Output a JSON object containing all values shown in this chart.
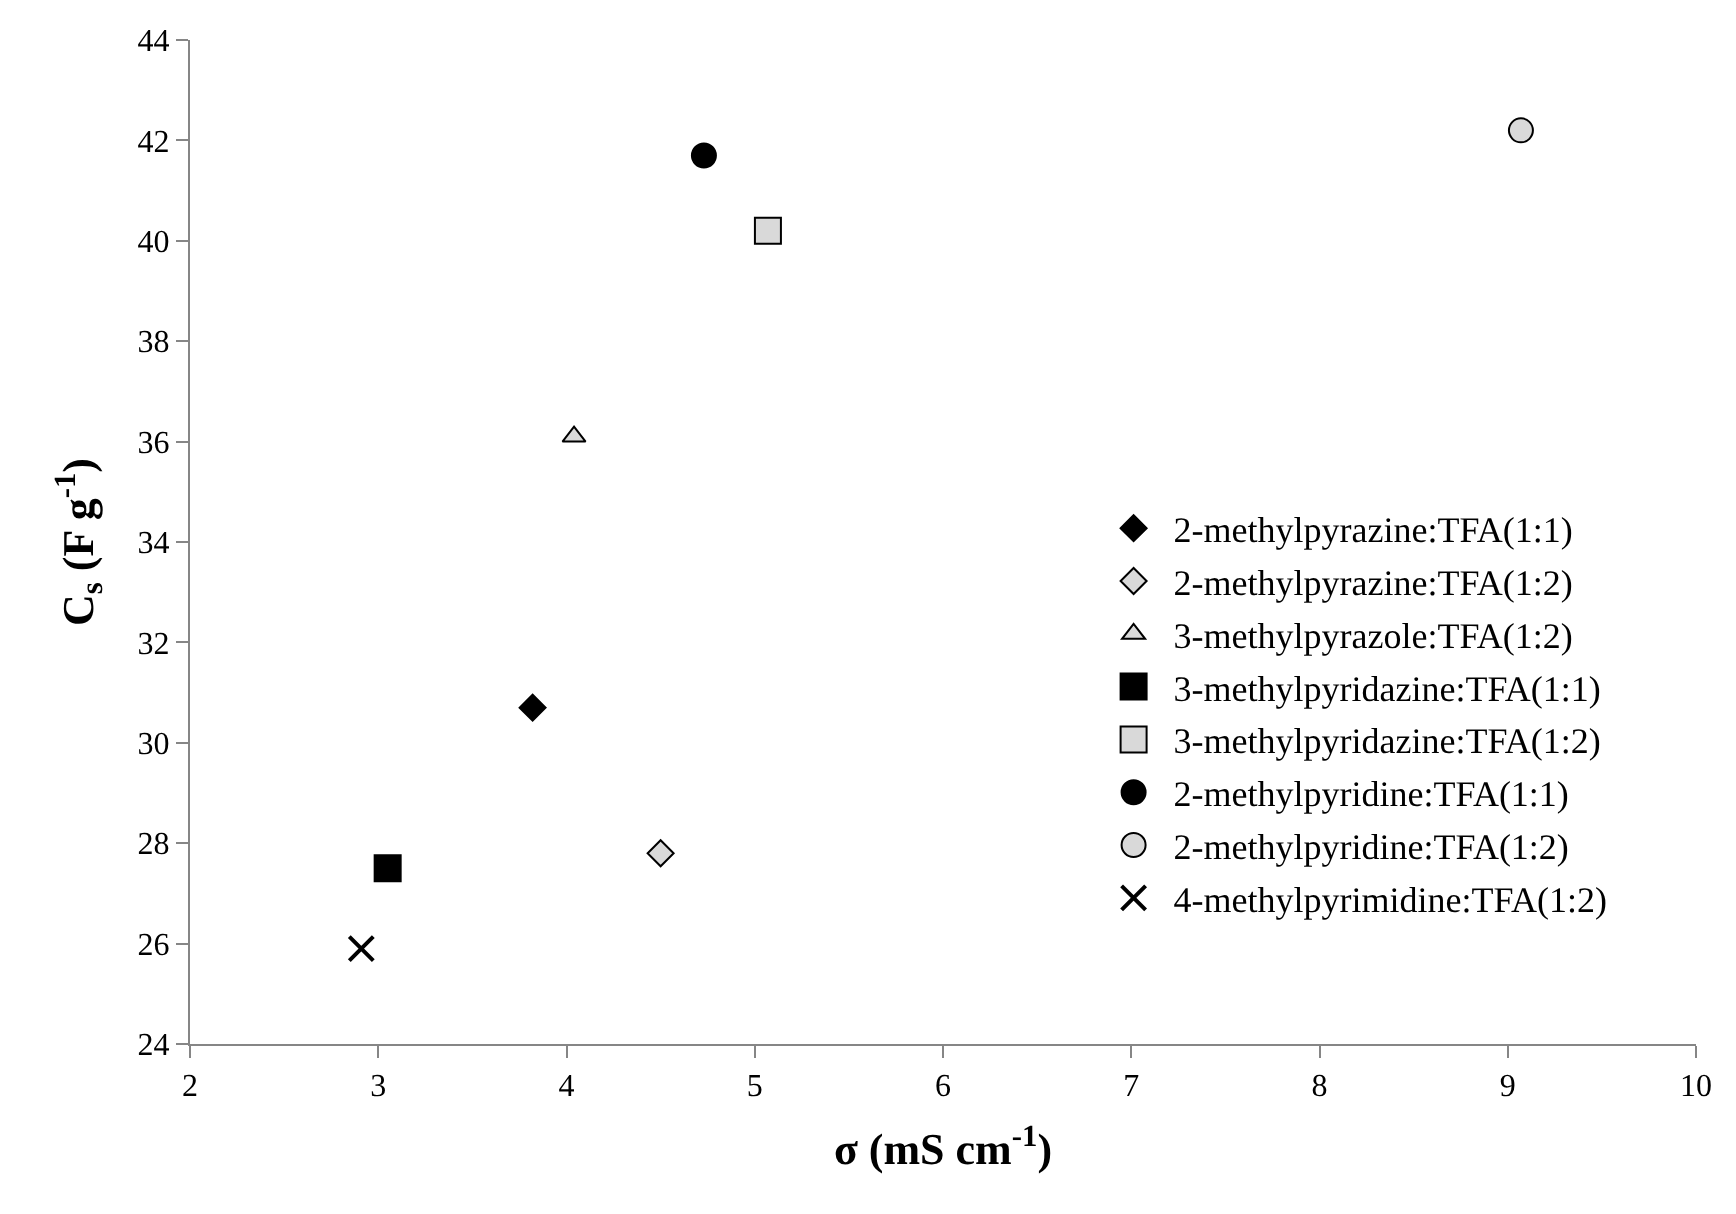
{
  "chart_data": {
    "type": "scatter",
    "xlabel": "σ (mS cm$^{-1}$)",
    "ylabel": "C$_{s}$ (F g$^{-1}$)",
    "xlim": [
      2,
      10
    ],
    "xticks": [
      2,
      3,
      4,
      5,
      6,
      7,
      8,
      9,
      10
    ],
    "ylim": [
      24,
      44
    ],
    "yticks": [
      24,
      26,
      28,
      30,
      32,
      34,
      36,
      38,
      40,
      42,
      44
    ],
    "grid": false,
    "legend": "right",
    "series": [
      {
        "name": "2-methylpyrazine:TFA(1:1)",
        "color": "#000000",
        "marker": "diamond",
        "x": [
          3.82
        ],
        "values": [
          30.7
        ]
      },
      {
        "name": "2-methylpyrazine:TFA(1:2)",
        "color": "#d9d9d9",
        "marker": "diamond",
        "x": [
          4.5
        ],
        "values": [
          27.8
        ]
      },
      {
        "name": "3-methylpyrazole:TFA(1:2)",
        "color": "#d9d9d9",
        "marker": "triangle",
        "x": [
          4.04
        ],
        "values": [
          36.1
        ]
      },
      {
        "name": "3-methylpyridazine:TFA(1:1)",
        "color": "#000000",
        "marker": "square",
        "x": [
          3.05
        ],
        "values": [
          27.5
        ]
      },
      {
        "name": "3-methylpyridazine:TFA(1:2)",
        "color": "#d9d9d9",
        "marker": "square",
        "x": [
          5.07
        ],
        "values": [
          40.2
        ]
      },
      {
        "name": "2-methylpyridine:TFA(1:1)",
        "color": "#000000",
        "marker": "circle",
        "x": [
          4.73
        ],
        "values": [
          41.7
        ]
      },
      {
        "name": "2-methylpyridine:TFA(1:2)",
        "color": "#d9d9d9",
        "marker": "circle",
        "x": [
          9.07
        ],
        "values": [
          42.2
        ]
      },
      {
        "name": "4-methylpyrimidine:TFA(1:2)",
        "color": "#000000",
        "marker": "cross",
        "x": [
          2.91
        ],
        "values": [
          25.9
        ]
      }
    ]
  }
}
